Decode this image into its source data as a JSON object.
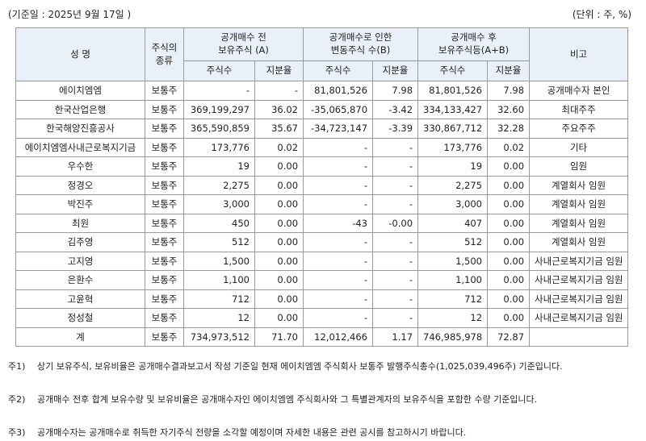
{
  "header": {
    "date_label": "(기준일 :   2025년 9월 17일      )",
    "unit_label": "(단위 : 주, %)"
  },
  "table": {
    "col_name": "성 명",
    "col_type": "주식의\n종류",
    "col_before": "공개매수 전\n보유주식 (A)",
    "col_change": "공개매수로 인한\n변동주식 수(B)",
    "col_after": "공개매수 후\n보유주식등(A+B)",
    "col_note": "비고",
    "sub_shares": "주식수",
    "sub_ratio": "지분율",
    "rows": [
      {
        "name": "에이치엠엠",
        "type": "보통주",
        "a_shares": "-",
        "a_ratio": "-",
        "b_shares": "81,801,526",
        "b_ratio": "7.98",
        "c_shares": "81,801,526",
        "c_ratio": "7.98",
        "note": "공개매수자 본인"
      },
      {
        "name": "한국산업은행",
        "type": "보통주",
        "a_shares": "369,199,297",
        "a_ratio": "36.02",
        "b_shares": "-35,065,870",
        "b_ratio": "-3.42",
        "c_shares": "334,133,427",
        "c_ratio": "32.60",
        "note": "최대주주"
      },
      {
        "name": "한국해양진흥공사",
        "type": "보통주",
        "a_shares": "365,590,859",
        "a_ratio": "35.67",
        "b_shares": "-34,723,147",
        "b_ratio": "-3.39",
        "c_shares": "330,867,712",
        "c_ratio": "32.28",
        "note": "주요주주"
      },
      {
        "name": "에이치엠엠사내근로복지기금",
        "type": "보통주",
        "a_shares": "173,776",
        "a_ratio": "0.02",
        "b_shares": "-",
        "b_ratio": "-",
        "c_shares": "173,776",
        "c_ratio": "0.02",
        "note": "기타"
      },
      {
        "name": "우수한",
        "type": "보통주",
        "a_shares": "19",
        "a_ratio": "0.00",
        "b_shares": "-",
        "b_ratio": "-",
        "c_shares": "19",
        "c_ratio": "0.00",
        "note": "임원"
      },
      {
        "name": "정경오",
        "type": "보통주",
        "a_shares": "2,275",
        "a_ratio": "0.00",
        "b_shares": "-",
        "b_ratio": "-",
        "c_shares": "2,275",
        "c_ratio": "0.00",
        "note": "계열회사 임원"
      },
      {
        "name": "박진주",
        "type": "보통주",
        "a_shares": "3,000",
        "a_ratio": "0.00",
        "b_shares": "-",
        "b_ratio": "-",
        "c_shares": "3,000",
        "c_ratio": "0.00",
        "note": "계열회사 임원"
      },
      {
        "name": "최원",
        "type": "보통주",
        "a_shares": "450",
        "a_ratio": "0.00",
        "b_shares": "-43",
        "b_ratio": "-0.00",
        "c_shares": "407",
        "c_ratio": "0.00",
        "note": "계열회사 임원"
      },
      {
        "name": "김주영",
        "type": "보통주",
        "a_shares": "512",
        "a_ratio": "0.00",
        "b_shares": "-",
        "b_ratio": "-",
        "c_shares": "512",
        "c_ratio": "0.00",
        "note": "계열회사 임원"
      },
      {
        "name": "고지영",
        "type": "보통주",
        "a_shares": "1,500",
        "a_ratio": "0.00",
        "b_shares": "-",
        "b_ratio": "-",
        "c_shares": "1,500",
        "c_ratio": "0.00",
        "note": "사내근로복지기금 임원"
      },
      {
        "name": "은환수",
        "type": "보통주",
        "a_shares": "1,100",
        "a_ratio": "0.00",
        "b_shares": "-",
        "b_ratio": "-",
        "c_shares": "1,100",
        "c_ratio": "0.00",
        "note": "사내근로복지기금 임원"
      },
      {
        "name": "고윤혁",
        "type": "보통주",
        "a_shares": "712",
        "a_ratio": "0.00",
        "b_shares": "-",
        "b_ratio": "-",
        "c_shares": "712",
        "c_ratio": "0.00",
        "note": "사내근로복지기금 임원"
      },
      {
        "name": "정성철",
        "type": "보통주",
        "a_shares": "12",
        "a_ratio": "0.00",
        "b_shares": "-",
        "b_ratio": "-",
        "c_shares": "12",
        "c_ratio": "0.00",
        "note": "사내근로복지기금 임원"
      },
      {
        "name": "계",
        "type": "보통주",
        "a_shares": "734,973,512",
        "a_ratio": "71.70",
        "b_shares": "12,012,466",
        "b_ratio": "1.17",
        "c_shares": "746,985,978",
        "c_ratio": "72.87",
        "note": ""
      }
    ]
  },
  "notes": [
    {
      "no": "주1)",
      "text": "상기 보유주식, 보유비율은 공개매수결과보고서 작성 기준일 현재 에이치엠엠 주식회사 보통주 발행주식총수(1,025,039,496주) 기준입니다."
    },
    {
      "no": "주2)",
      "text": "공개매수 전후 합계 보유수량 및 보유비율은 공개매수자인 에이치엠엠 주식회사와 그 특별관계자의 보유주식을 포함한 수량 기준입니다."
    },
    {
      "no": "주3)",
      "text": "공개매수자는 공개매수로 취득한 자기주식 전량을 소각할 예정이며 자세한 내용은 관련 공시를 참고하시기 바랍니다."
    }
  ]
}
